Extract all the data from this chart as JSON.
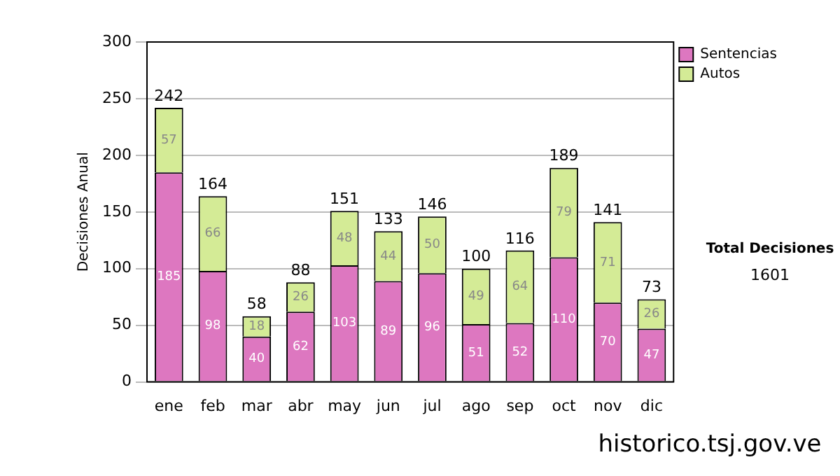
{
  "chart_data": {
    "type": "bar",
    "stacked": true,
    "ylabel": "Decisiones Anual",
    "categories": [
      "ene",
      "feb",
      "mar",
      "abr",
      "may",
      "jun",
      "jul",
      "ago",
      "sep",
      "oct",
      "nov",
      "dic"
    ],
    "series": [
      {
        "name": "Sentencias",
        "color": "#dd77c0",
        "values": [
          185,
          98,
          40,
          62,
          103,
          89,
          96,
          51,
          52,
          110,
          70,
          47
        ]
      },
      {
        "name": "Autos",
        "color": "#d4eb96",
        "values": [
          57,
          66,
          18,
          26,
          48,
          44,
          50,
          49,
          64,
          79,
          71,
          26
        ]
      }
    ],
    "totals": [
      "242",
      "164",
      "58",
      "88",
      "151",
      "133",
      "146",
      "100",
      "116",
      "189",
      "141",
      "73"
    ],
    "data_labels": true,
    "ylim": [
      0,
      300
    ],
    "yticks": [
      0,
      50,
      100,
      150,
      200,
      250,
      300
    ],
    "grid": "y",
    "legend": "right",
    "annotations": [
      "Total Decisiones",
      "1601",
      "historico.tsj.gov.ve"
    ]
  }
}
